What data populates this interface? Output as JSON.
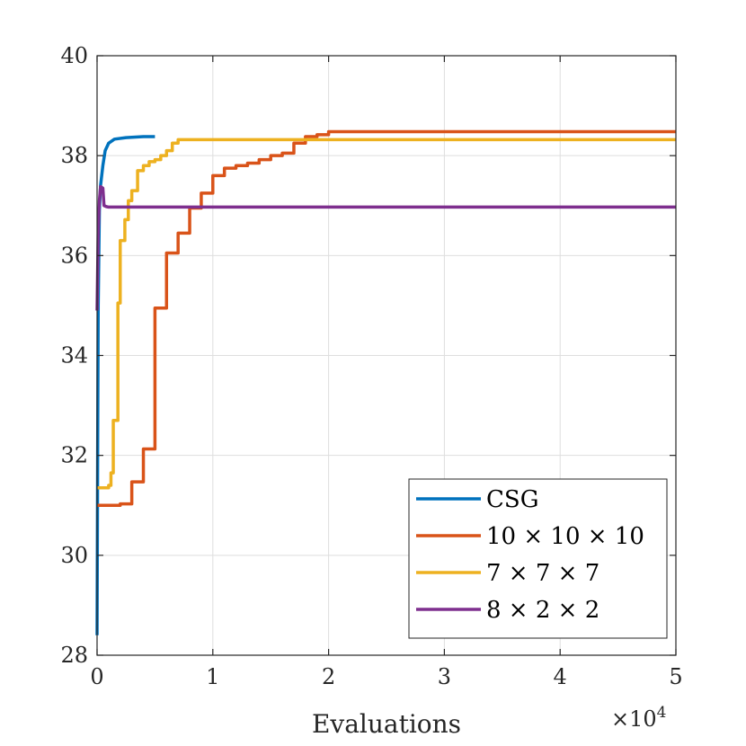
{
  "chart_data": {
    "type": "line",
    "title": "",
    "xlabel": "Evaluations",
    "ylabel": "",
    "x_exponent_label": "×10",
    "x_exponent_power": "4",
    "xlim": [
      0,
      5
    ],
    "ylim": [
      28,
      40
    ],
    "x_scale_note": "x values in units of 10^4 evaluations",
    "xticks": [
      0,
      1,
      2,
      3,
      4,
      5
    ],
    "xtick_labels": [
      "0",
      "1",
      "2",
      "3",
      "4",
      "5"
    ],
    "yticks": [
      28,
      30,
      32,
      34,
      36,
      38,
      40
    ],
    "ytick_labels": [
      "28",
      "30",
      "32",
      "34",
      "36",
      "38",
      "40"
    ],
    "grid": true,
    "legend_position": "bottom-right",
    "series": [
      {
        "name": "CSG",
        "color": "#0072BD",
        "step": false,
        "points": [
          [
            0,
            28.4
          ],
          [
            0.005,
            32
          ],
          [
            0.01,
            35
          ],
          [
            0.02,
            36.9
          ],
          [
            0.03,
            37.4
          ],
          [
            0.05,
            37.8
          ],
          [
            0.07,
            38.1
          ],
          [
            0.1,
            38.25
          ],
          [
            0.15,
            38.33
          ],
          [
            0.25,
            38.36
          ],
          [
            0.4,
            38.38
          ],
          [
            0.5,
            38.38
          ]
        ]
      },
      {
        "name": "10 × 10 × 10",
        "color": "#D95319",
        "step": true,
        "points": [
          [
            0,
            31
          ],
          [
            0.2,
            31.03
          ],
          [
            0.3,
            31.47
          ],
          [
            0.4,
            32.13
          ],
          [
            0.5,
            34.95
          ],
          [
            0.6,
            36.05
          ],
          [
            0.7,
            36.45
          ],
          [
            0.8,
            36.95
          ],
          [
            0.9,
            37.25
          ],
          [
            1.0,
            37.6
          ],
          [
            1.1,
            37.75
          ],
          [
            1.2,
            37.8
          ],
          [
            1.3,
            37.85
          ],
          [
            1.4,
            37.92
          ],
          [
            1.5,
            38.0
          ],
          [
            1.6,
            38.05
          ],
          [
            1.7,
            38.25
          ],
          [
            1.8,
            38.38
          ],
          [
            1.9,
            38.42
          ],
          [
            2.0,
            38.48
          ],
          [
            5.0,
            38.48
          ]
        ]
      },
      {
        "name": "7 × 7 × 7",
        "color": "#EDB120",
        "step": true,
        "points": [
          [
            0,
            31.35
          ],
          [
            0.1,
            31.4
          ],
          [
            0.12,
            31.65
          ],
          [
            0.14,
            32.7
          ],
          [
            0.18,
            35.05
          ],
          [
            0.2,
            36.3
          ],
          [
            0.24,
            36.72
          ],
          [
            0.27,
            37.1
          ],
          [
            0.3,
            37.3
          ],
          [
            0.35,
            37.7
          ],
          [
            0.4,
            37.8
          ],
          [
            0.45,
            37.88
          ],
          [
            0.5,
            37.92
          ],
          [
            0.55,
            38.0
          ],
          [
            0.6,
            38.1
          ],
          [
            0.65,
            38.25
          ],
          [
            0.7,
            38.32
          ],
          [
            5.0,
            38.32
          ]
        ]
      },
      {
        "name": "8 × 2 × 2",
        "color": "#7E2F8E",
        "step": false,
        "points": [
          [
            0,
            34.9
          ],
          [
            0.01,
            36.5
          ],
          [
            0.02,
            37.1
          ],
          [
            0.03,
            37.38
          ],
          [
            0.05,
            37.35
          ],
          [
            0.06,
            37.0
          ],
          [
            0.08,
            36.98
          ],
          [
            0.1,
            36.97
          ],
          [
            5.0,
            36.97
          ]
        ]
      }
    ]
  }
}
